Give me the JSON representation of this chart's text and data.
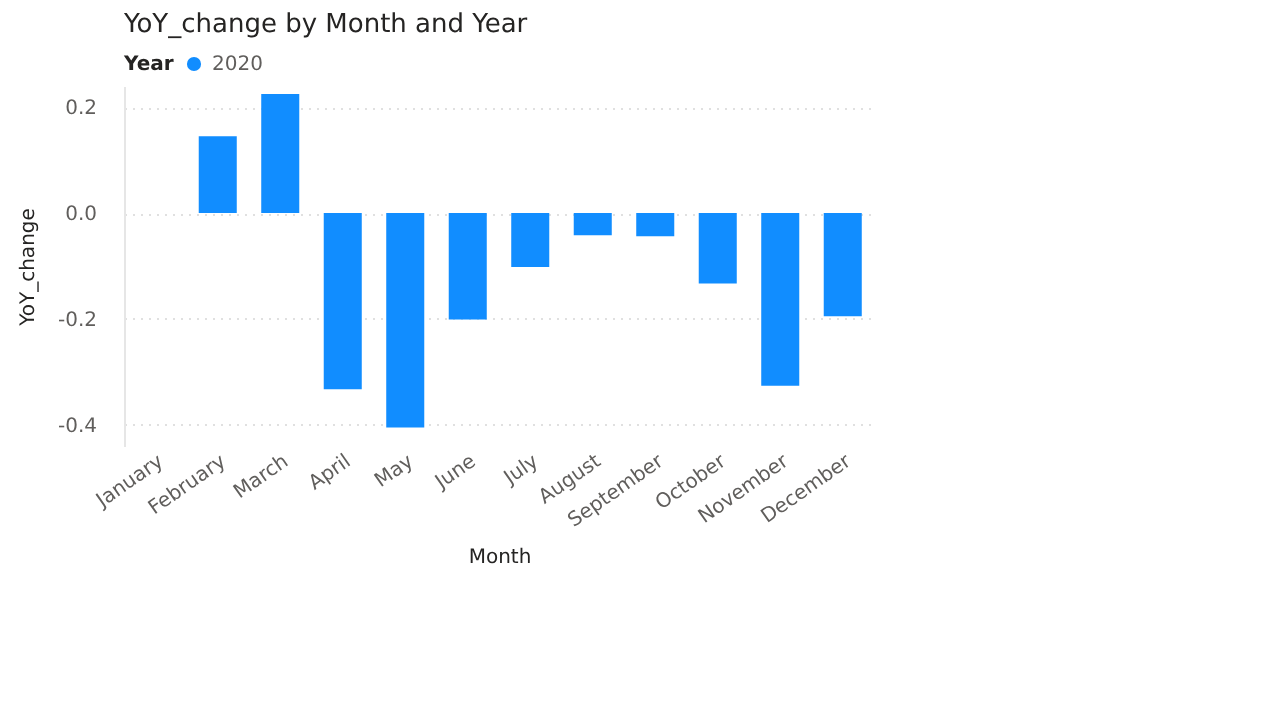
{
  "chart_data": {
    "type": "bar",
    "title": "YoY_change by Month and Year",
    "xlabel": "Month",
    "ylabel": "YoY_change",
    "legend_title": "Year",
    "categories": [
      "January",
      "February",
      "March",
      "April",
      "May",
      "June",
      "July",
      "August",
      "September",
      "October",
      "November",
      "December"
    ],
    "series": [
      {
        "name": "2020",
        "color": "#118dff",
        "values": [
          null,
          0.145,
          0.225,
          -0.333,
          -0.405,
          -0.201,
          -0.102,
          -0.042,
          -0.044,
          -0.133,
          -0.326,
          -0.195
        ]
      }
    ],
    "ylim": [
      -0.44,
      0.24
    ],
    "yticks": [
      {
        "value": -0.4,
        "label": "-0.4"
      },
      {
        "value": -0.2,
        "label": "-0.2"
      },
      {
        "value": 0,
        "label": "0.0"
      },
      {
        "value": 0.2,
        "label": "0.2"
      }
    ],
    "grid": "y",
    "legend": "top left"
  }
}
